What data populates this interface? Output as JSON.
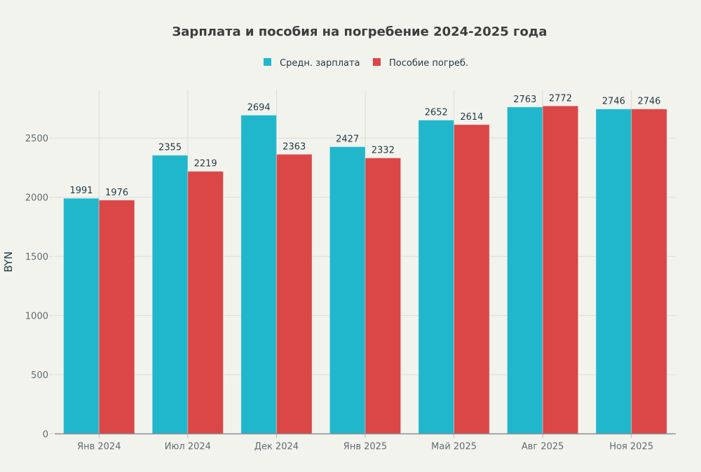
{
  "chart_data": {
    "type": "bar",
    "title": "Зарплата и пособия на погребение 2024-2025 года",
    "xlabel": "",
    "ylabel": "BYN",
    "categories": [
      "Янв 2024",
      "Июл 2024",
      "Дек 2024",
      "Янв 2025",
      "Май 2025",
      "Авг 2025",
      "Ноя 2025"
    ],
    "series": [
      {
        "name": "Средн. зарплата",
        "color": "#20b7cc",
        "values": [
          1991,
          2355,
          2694,
          2427,
          2652,
          2763,
          2746
        ]
      },
      {
        "name": "Пособие погреб.",
        "color": "#db4647",
        "values": [
          1976,
          2219,
          2363,
          2332,
          2614,
          2772,
          2746
        ]
      }
    ],
    "ylim": [
      0,
      2910
    ],
    "yticks": [
      0,
      500,
      1000,
      1500,
      2000,
      2500
    ],
    "grid": true,
    "legend_position": "top-center",
    "data_labels": true
  }
}
